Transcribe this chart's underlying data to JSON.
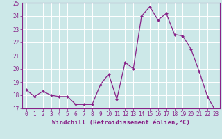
{
  "x": [
    0,
    1,
    2,
    3,
    4,
    5,
    6,
    7,
    8,
    9,
    10,
    11,
    12,
    13,
    14,
    15,
    16,
    17,
    18,
    19,
    20,
    21,
    22,
    23
  ],
  "y": [
    18.4,
    17.9,
    18.3,
    18.0,
    17.9,
    17.9,
    17.3,
    17.3,
    17.3,
    18.8,
    19.6,
    17.7,
    20.5,
    20.0,
    24.0,
    24.7,
    23.7,
    24.2,
    22.6,
    22.5,
    21.5,
    19.8,
    17.9,
    16.8
  ],
  "line_color": "#882288",
  "marker_color": "#882288",
  "bg_color": "#cce8e8",
  "grid_color": "#ffffff",
  "xlabel": "Windchill (Refroidissement éolien,°C)",
  "ylabel": "",
  "ylim": [
    17,
    25
  ],
  "xlim": [
    -0.5,
    23.5
  ],
  "yticks": [
    17,
    18,
    19,
    20,
    21,
    22,
    23,
    24,
    25
  ],
  "xticks": [
    0,
    1,
    2,
    3,
    4,
    5,
    6,
    7,
    8,
    9,
    10,
    11,
    12,
    13,
    14,
    15,
    16,
    17,
    18,
    19,
    20,
    21,
    22,
    23
  ],
  "tick_color": "#882288",
  "label_fontsize": 6.5,
  "tick_fontsize": 5.5,
  "linewidth": 0.9,
  "markersize": 2.0
}
